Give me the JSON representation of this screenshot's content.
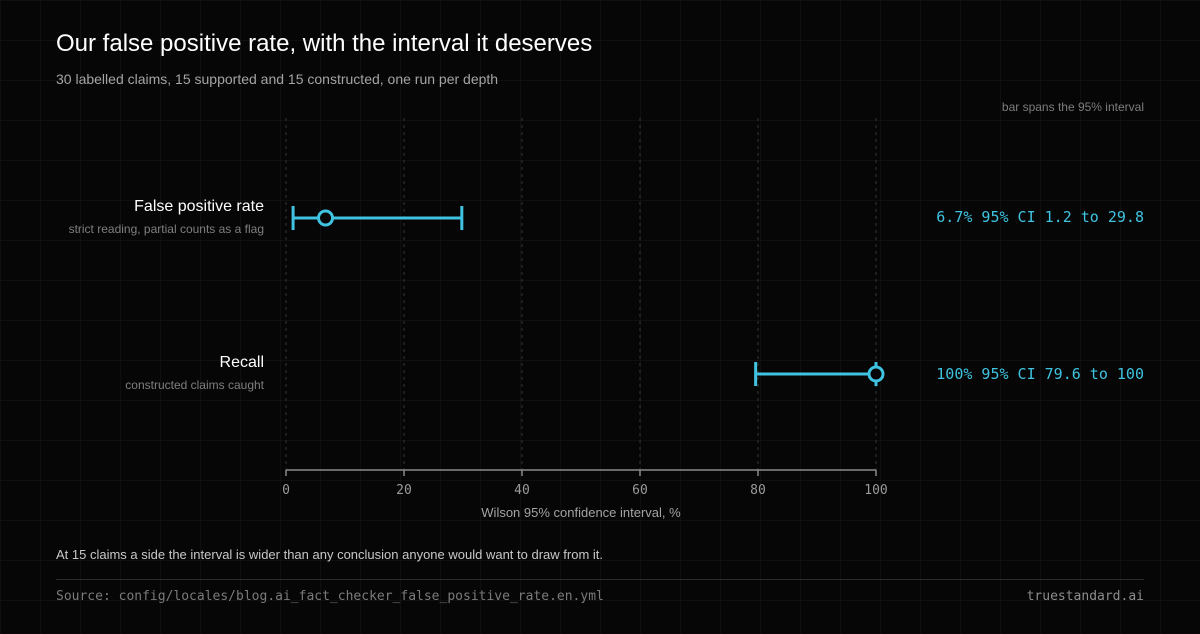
{
  "header": {
    "title": "Our false positive rate, with the interval it deserves",
    "subtitle": "30 labelled claims, 15 supported and 15 constructed, one run per depth",
    "legend_note": "bar spans the 95% interval"
  },
  "rows": [
    {
      "label": "False positive rate",
      "sublabel": "strict reading, partial counts as a flag",
      "value_text": "6.7% 95% CI 1.2 to 29.8"
    },
    {
      "label": "Recall",
      "sublabel": "constructed claims caught",
      "value_text": "100% 95% CI 79.6 to 100"
    }
  ],
  "footer": {
    "takeaway": "At 15 claims a side the interval is wider than any conclusion anyone would want to draw from it.",
    "source": "Source: config/locales/blog.ai_fact_checker_false_positive_rate.en.yml",
    "brand": "truestandard.ai"
  },
  "colors": {
    "accent": "#3fc3e0",
    "background": "#060606"
  },
  "chart_data": {
    "type": "interval",
    "title": "Our false positive rate, with the interval it deserves",
    "subtitle": "30 labelled claims, 15 supported and 15 constructed, one run per depth",
    "xlabel": "Wilson 95% confidence interval, %",
    "ylabel": "",
    "xlim": [
      0,
      100
    ],
    "xticks": [
      0,
      20,
      40,
      60,
      80,
      100
    ],
    "grid": true,
    "legend": "bar spans the 95% interval",
    "series": [
      {
        "name": "False positive rate",
        "estimate": 6.7,
        "low": 1.2,
        "high": 29.8
      },
      {
        "name": "Recall",
        "estimate": 100,
        "low": 79.6,
        "high": 100
      }
    ]
  }
}
